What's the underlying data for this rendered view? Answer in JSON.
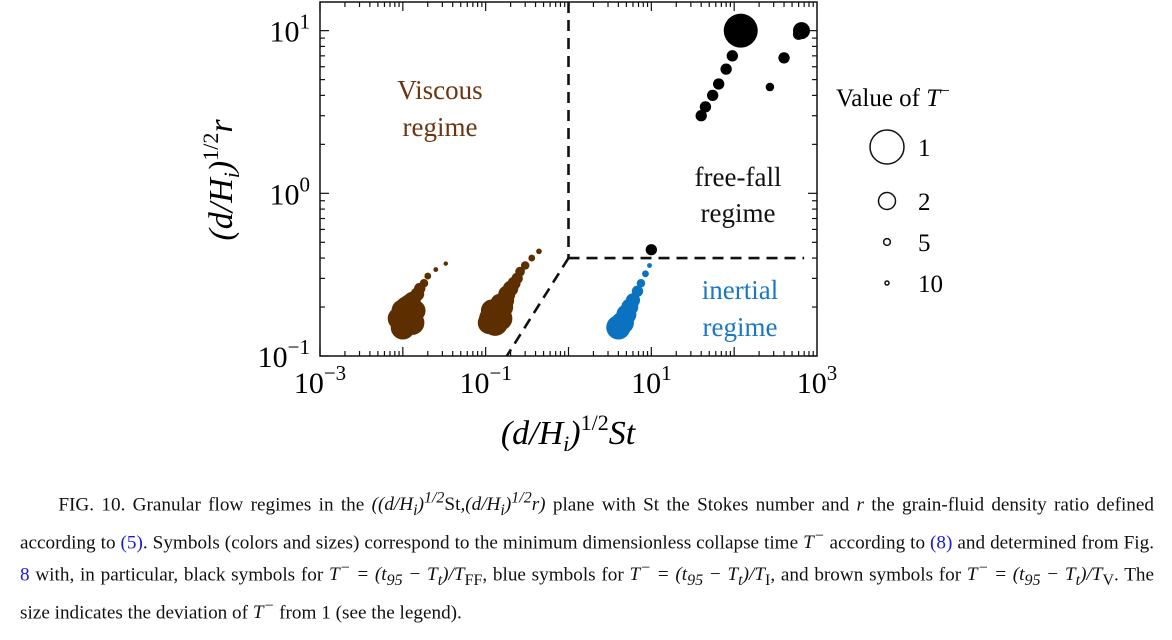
{
  "figure": {
    "xlabel": "(d/H_i)^{1/2} St",
    "ylabel": "(d/H_i)^{1/2} r",
    "x_ticks": [
      {
        "value": 0.001,
        "label": "10^{-3}"
      },
      {
        "value": 0.1,
        "label": "10^{-1}"
      },
      {
        "value": 10,
        "label": "10^{1}"
      },
      {
        "value": 1000,
        "label": "10^{3}"
      }
    ],
    "y_ticks": [
      {
        "value": 0.1,
        "label": "10^{-1}"
      },
      {
        "value": 1,
        "label": "10^{0}"
      },
      {
        "value": 10,
        "label": "10^{1}"
      }
    ],
    "regimes": {
      "viscous": [
        "Viscous",
        "regime"
      ],
      "freefall": [
        "free-fall",
        "regime"
      ],
      "inertial": [
        "inertial",
        "regime"
      ]
    },
    "legend": {
      "title": "Value of T^-",
      "entries": [
        {
          "label": "1",
          "value": 1
        },
        {
          "label": "2",
          "value": 2
        },
        {
          "label": "5",
          "value": 5
        },
        {
          "label": "10",
          "value": 10
        }
      ]
    },
    "colors": {
      "viscous": "#5c2e00",
      "inertial": "#0a72c0",
      "freefall": "#000000",
      "viscous_label": "#6b3510",
      "inertial_label": "#1a78c2"
    }
  },
  "chart_data": {
    "type": "scatter",
    "xlabel": "(d/H_i)^{1/2} St",
    "ylabel": "(d/H_i)^{1/2} r",
    "x_scale": "log",
    "y_scale": "log",
    "xlim": [
      0.001,
      1000
    ],
    "ylim": [
      0.1,
      15
    ],
    "boundaries": [
      {
        "style": "dashed",
        "points": [
          [
            1,
            15
          ],
          [
            1,
            0.4
          ]
        ]
      },
      {
        "style": "dashed",
        "points": [
          [
            1,
            0.4
          ],
          [
            700,
            0.4
          ]
        ]
      },
      {
        "style": "dashed",
        "points": [
          [
            1,
            0.4
          ],
          [
            0.18,
            0.1
          ]
        ]
      }
    ],
    "series": [
      {
        "name": "viscous",
        "points": [
          [
            0.01,
            0.17,
            1.3
          ],
          [
            0.011,
            0.16,
            1.3
          ],
          [
            0.012,
            0.18,
            1.4
          ],
          [
            0.01,
            0.19,
            1.5
          ],
          [
            0.013,
            0.16,
            1.4
          ],
          [
            0.009,
            0.17,
            1.5
          ],
          [
            0.011,
            0.2,
            1.6
          ],
          [
            0.012,
            0.21,
            1.8
          ],
          [
            0.014,
            0.19,
            1.6
          ],
          [
            0.01,
            0.15,
            1.4
          ],
          [
            0.013,
            0.22,
            2
          ],
          [
            0.015,
            0.24,
            2.5
          ],
          [
            0.016,
            0.26,
            3
          ],
          [
            0.018,
            0.28,
            4
          ],
          [
            0.02,
            0.31,
            5
          ],
          [
            0.025,
            0.34,
            7
          ],
          [
            0.033,
            0.37,
            10
          ],
          [
            0.12,
            0.17,
            1.3
          ],
          [
            0.13,
            0.16,
            1.3
          ],
          [
            0.14,
            0.18,
            1.4
          ],
          [
            0.12,
            0.19,
            1.5
          ],
          [
            0.15,
            0.17,
            1.4
          ],
          [
            0.11,
            0.16,
            1.5
          ],
          [
            0.16,
            0.2,
            1.6
          ],
          [
            0.17,
            0.22,
            1.8
          ],
          [
            0.15,
            0.21,
            1.7
          ],
          [
            0.18,
            0.24,
            2
          ],
          [
            0.2,
            0.26,
            2.2
          ],
          [
            0.22,
            0.28,
            2.6
          ],
          [
            0.24,
            0.3,
            3
          ],
          [
            0.26,
            0.33,
            3.5
          ],
          [
            0.3,
            0.36,
            4
          ],
          [
            0.36,
            0.4,
            5
          ],
          [
            0.44,
            0.44,
            6
          ]
        ]
      },
      {
        "name": "inertial",
        "points": [
          [
            4.0,
            0.15,
            1.4
          ],
          [
            4.5,
            0.16,
            1.5
          ],
          [
            5.0,
            0.18,
            1.7
          ],
          [
            5.5,
            0.2,
            2
          ],
          [
            6.0,
            0.22,
            2.4
          ],
          [
            6.8,
            0.25,
            3
          ],
          [
            7.5,
            0.28,
            4
          ],
          [
            8.5,
            0.32,
            5
          ],
          [
            9.5,
            0.36,
            7
          ]
        ]
      },
      {
        "name": "freefall",
        "points": [
          [
            10,
            0.45,
            3
          ],
          [
            40,
            3.0,
            3
          ],
          [
            45,
            3.4,
            3
          ],
          [
            55,
            4.0,
            3
          ],
          [
            65,
            4.7,
            3
          ],
          [
            80,
            5.8,
            3
          ],
          [
            95,
            7.0,
            3
          ],
          [
            120,
            10,
            1
          ],
          [
            270,
            4.5,
            4
          ],
          [
            400,
            6.8,
            3
          ],
          [
            650,
            10,
            2
          ],
          [
            600,
            9.5,
            3
          ]
        ]
      }
    ]
  },
  "caption": {
    "s1": "FIG. 10. Granular flow regimes in the",
    "pair": "((d/H_i)^{1/2}St, (d/H_i)^{1/2}r)",
    "s2": "plane with St the Stokes number and",
    "r": "r",
    "s3": "the grain-fluid density ratio defined according to",
    "ref_eq5": "(5)",
    "s4": ". Symbols (colors and sizes) correspond to the minimum dimensionless collapse time",
    "tminus": "T^-",
    "s5": "according to",
    "ref_eq8": "(8)",
    "s6": "and determined from Fig.",
    "ref_fig8": "8",
    "s7": "with, in particular, black symbols for",
    "eq_ff": "T^- = (t_95 − T_t)/T_FF",
    "s8": ", blue symbols for",
    "eq_i": "T^- = (t_95 − T_t)/T_I",
    "s9": ", and brown symbols for",
    "eq_v": "T^- = (t_95 − T_t)/T_V",
    "s10": ". The size indicates the deviation of",
    "s11": "from 1 (see the legend)."
  }
}
